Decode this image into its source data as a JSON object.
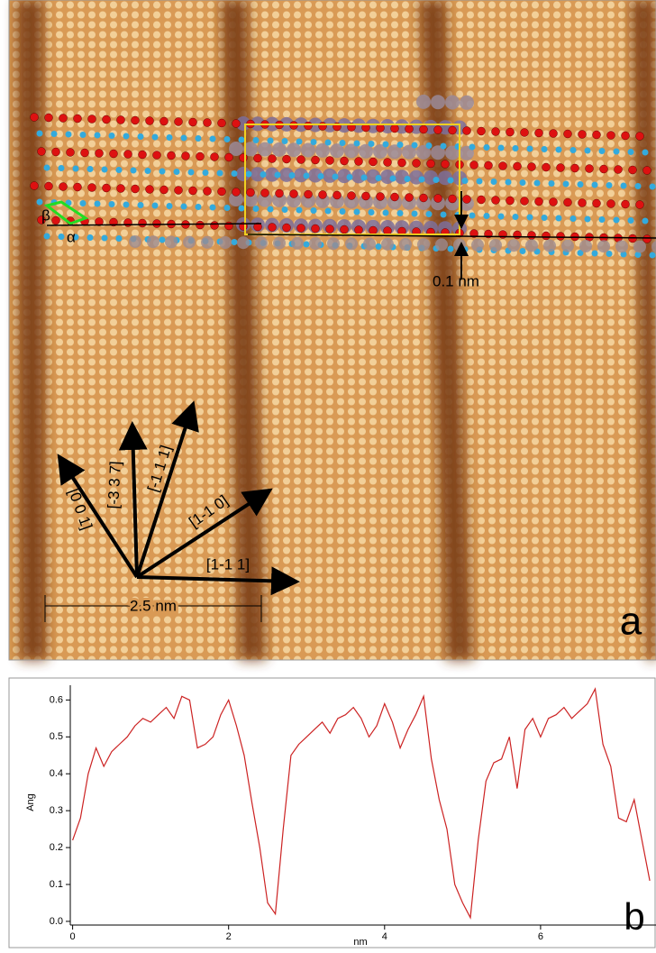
{
  "panel_a": {
    "label": "a",
    "scale_bar": "2.5 nm",
    "step_height": "0.1 nm",
    "angle_alpha": "α",
    "angle_beta": "β",
    "directions": [
      "[0 0 1]",
      "[-3 3 7]",
      "[-1 1 1]",
      "[1-1 0]",
      "[1-1 1]"
    ]
  },
  "chart_data": {
    "type": "line",
    "panel_label": "b",
    "x_label": "nm",
    "y_label": "Ang",
    "x": [
      0,
      0.1,
      0.2,
      0.3,
      0.4,
      0.5,
      0.6,
      0.7,
      0.8,
      0.9,
      1.0,
      1.1,
      1.2,
      1.3,
      1.4,
      1.5,
      1.6,
      1.7,
      1.8,
      1.9,
      2.0,
      2.1,
      2.2,
      2.3,
      2.4,
      2.5,
      2.6,
      2.7,
      2.8,
      2.9,
      3.0,
      3.1,
      3.2,
      3.3,
      3.4,
      3.5,
      3.6,
      3.7,
      3.8,
      3.9,
      4.0,
      4.1,
      4.2,
      4.3,
      4.4,
      4.5,
      4.6,
      4.7,
      4.8,
      4.9,
      5.0,
      5.1,
      5.2,
      5.3,
      5.4,
      5.5,
      5.6,
      5.7,
      5.8,
      5.9,
      6.0,
      6.1,
      6.2,
      6.3,
      6.4,
      6.5,
      6.6,
      6.7,
      6.8,
      6.9,
      7.0,
      7.1,
      7.2,
      7.3,
      7.4
    ],
    "series": [
      {
        "color": "#cc2222",
        "values": [
          0.22,
          0.28,
          0.4,
          0.47,
          0.42,
          0.46,
          0.48,
          0.5,
          0.53,
          0.55,
          0.54,
          0.56,
          0.58,
          0.55,
          0.61,
          0.6,
          0.47,
          0.48,
          0.5,
          0.56,
          0.6,
          0.53,
          0.45,
          0.32,
          0.2,
          0.05,
          0.02,
          0.25,
          0.45,
          0.48,
          0.5,
          0.52,
          0.54,
          0.51,
          0.55,
          0.56,
          0.58,
          0.55,
          0.5,
          0.53,
          0.59,
          0.54,
          0.47,
          0.52,
          0.56,
          0.61,
          0.44,
          0.33,
          0.25,
          0.1,
          0.05,
          0.01,
          0.22,
          0.38,
          0.43,
          0.44,
          0.5,
          0.36,
          0.52,
          0.55,
          0.5,
          0.55,
          0.56,
          0.58,
          0.55,
          0.57,
          0.59,
          0.63,
          0.48,
          0.42,
          0.28,
          0.27,
          0.33,
          0.22,
          0.11
        ]
      }
    ],
    "xlim": [
      -0.03,
      7.48
    ],
    "ylim": [
      -0.01,
      0.64
    ],
    "xticks": [
      0,
      2,
      4,
      6
    ],
    "yticks": [
      {
        "value": 0,
        "label": "0.0"
      },
      0.1,
      0.2,
      0.3,
      0.4,
      0.5,
      0.6
    ]
  }
}
